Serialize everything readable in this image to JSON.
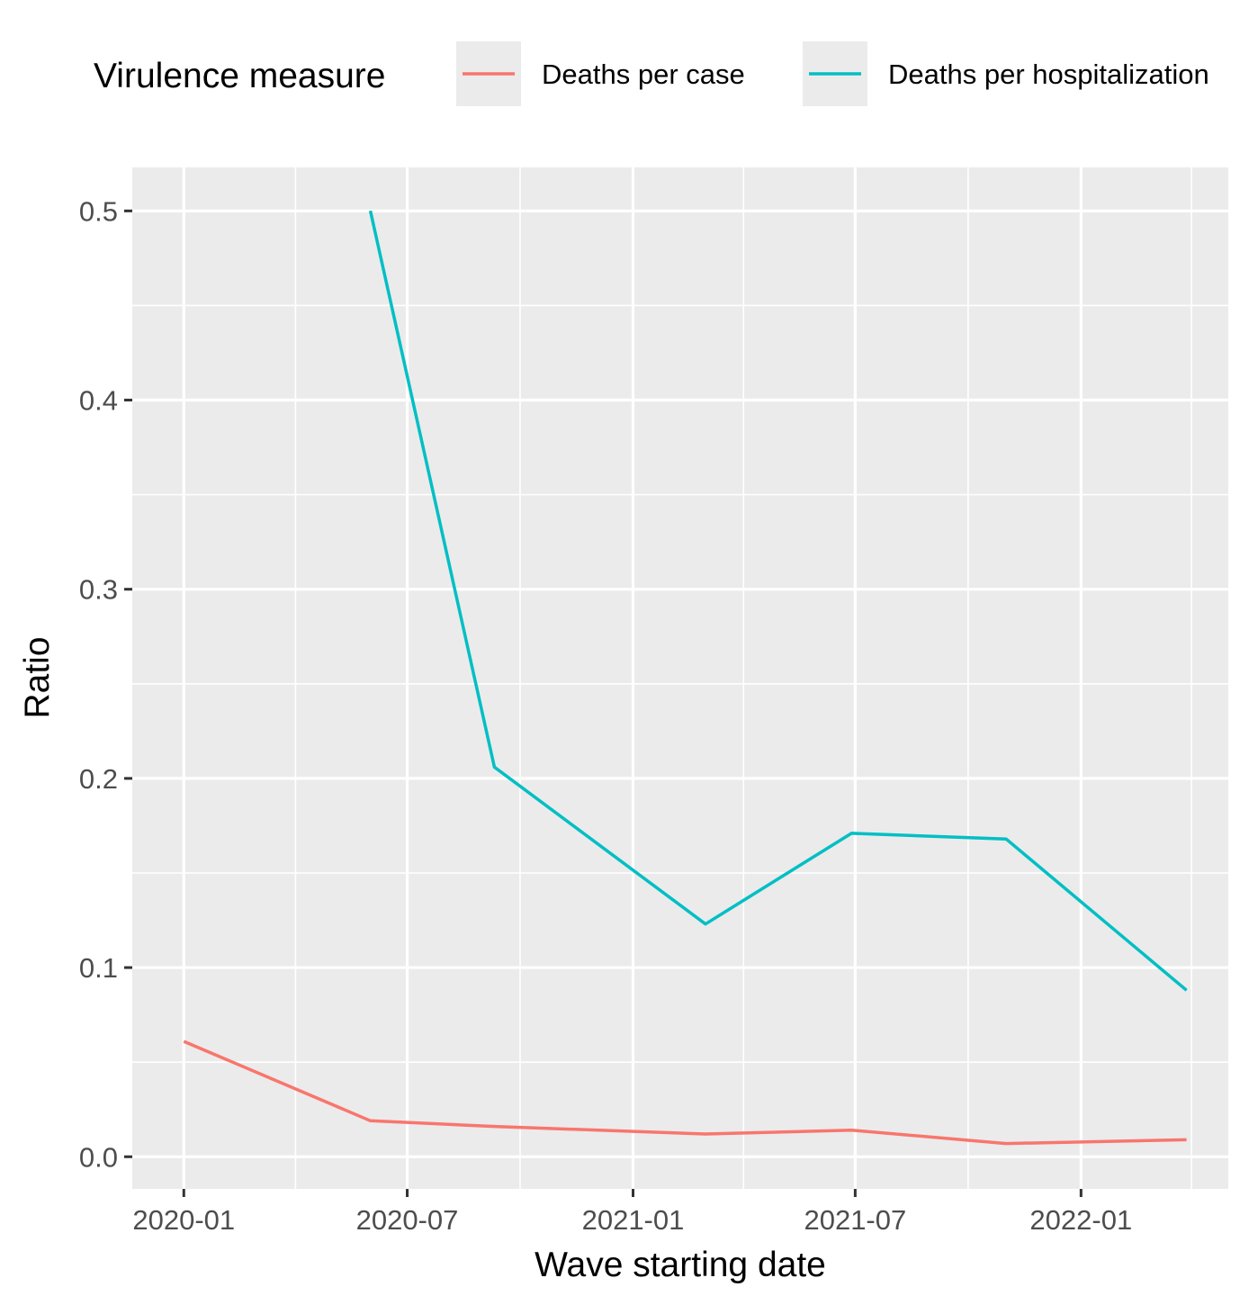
{
  "chart_data": {
    "type": "line",
    "title": "",
    "xlabel": "Wave starting date",
    "ylabel": "Ratio",
    "legend": {
      "title": "Virulence measure",
      "placement": "top"
    },
    "x_tick_labels": [
      "2020-01",
      "2020-07",
      "2021-01",
      "2021-07",
      "2022-01"
    ],
    "y_tick_labels": [
      "0.0",
      "0.1",
      "0.2",
      "0.3",
      "0.4",
      "0.5"
    ],
    "y_ticks": [
      0.0,
      0.1,
      0.2,
      0.3,
      0.4,
      0.5
    ],
    "xlim": [
      "2019-11-20",
      "2022-05-01"
    ],
    "ylim": [
      -0.017,
      0.523
    ],
    "grid": true,
    "panel_background": "#ebebeb",
    "series": [
      {
        "name": "Deaths per case",
        "color": "#f8766d",
        "points": [
          {
            "x": "2020-01-01",
            "y": 0.061
          },
          {
            "x": "2020-06-01",
            "y": 0.019
          },
          {
            "x": "2020-09-10",
            "y": 0.016
          },
          {
            "x": "2021-03-01",
            "y": 0.012
          },
          {
            "x": "2021-06-28",
            "y": 0.014
          },
          {
            "x": "2021-11-01",
            "y": 0.007
          },
          {
            "x": "2022-03-28",
            "y": 0.009
          }
        ]
      },
      {
        "name": "Deaths per hospitalization",
        "color": "#00bfc4",
        "points": [
          {
            "x": "2020-06-01",
            "y": 0.5
          },
          {
            "x": "2020-09-10",
            "y": 0.206
          },
          {
            "x": "2021-03-01",
            "y": 0.123
          },
          {
            "x": "2021-06-28",
            "y": 0.171
          },
          {
            "x": "2021-11-01",
            "y": 0.168
          },
          {
            "x": "2022-03-28",
            "y": 0.088
          }
        ]
      }
    ]
  }
}
